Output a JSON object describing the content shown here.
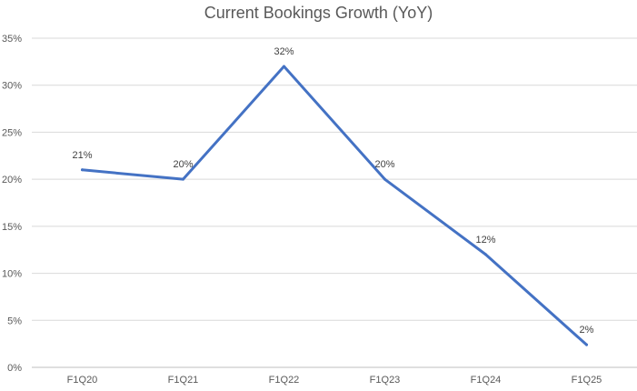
{
  "chart_data": {
    "type": "line",
    "title": "Current Bookings Growth (YoY)",
    "categories": [
      "F1Q20",
      "F1Q21",
      "F1Q22",
      "F1Q23",
      "F1Q24",
      "F1Q25"
    ],
    "series": [
      {
        "values": [
          21,
          20,
          32,
          20,
          12,
          2.4
        ],
        "color": "#4472c4"
      }
    ],
    "data_labels": [
      "21%",
      "20%",
      "32%",
      "20%",
      "12%",
      "2%"
    ],
    "y_ticks": [
      0,
      5,
      10,
      15,
      20,
      25,
      30,
      35
    ],
    "y_tick_labels": [
      "0%",
      "5%",
      "10%",
      "15%",
      "20%",
      "25%",
      "30%",
      "35%"
    ],
    "ylim": [
      0,
      35
    ],
    "xlabel": "",
    "ylabel": "",
    "grid": true,
    "legend": "none",
    "gridline_color": "#d9d9d9",
    "axis_color": "#bfbfbf"
  }
}
